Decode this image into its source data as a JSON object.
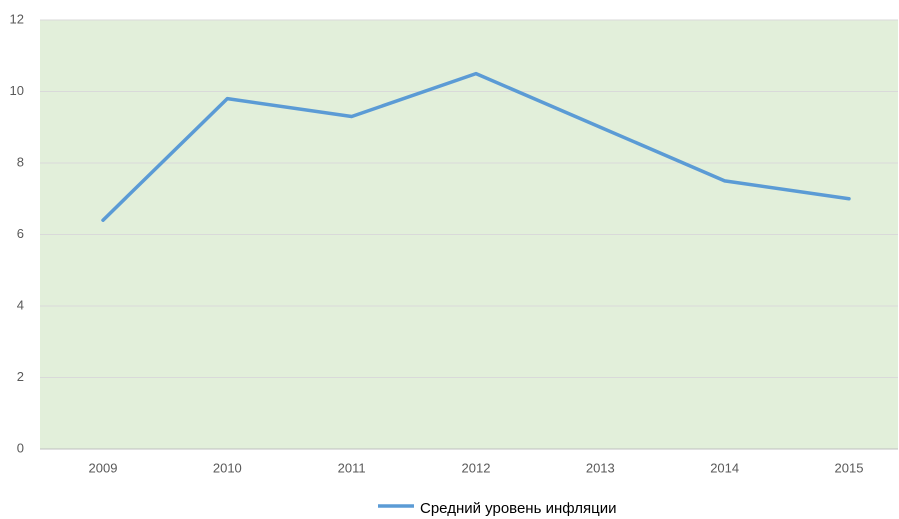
{
  "chart_data": {
    "type": "line",
    "categories": [
      "2009",
      "2010",
      "2011",
      "2012",
      "2013",
      "2014",
      "2015"
    ],
    "series": [
      {
        "name": "Средний уровень инфляции",
        "color": "#5b9bd5",
        "values": [
          6.4,
          9.8,
          9.3,
          10.5,
          9.0,
          7.5,
          7.0
        ]
      }
    ],
    "ylim": [
      0,
      12
    ],
    "yticks": [
      0,
      2,
      4,
      6,
      8,
      10,
      12
    ],
    "grid": true,
    "legend": "bottom",
    "plot_background": "#e2efda"
  }
}
